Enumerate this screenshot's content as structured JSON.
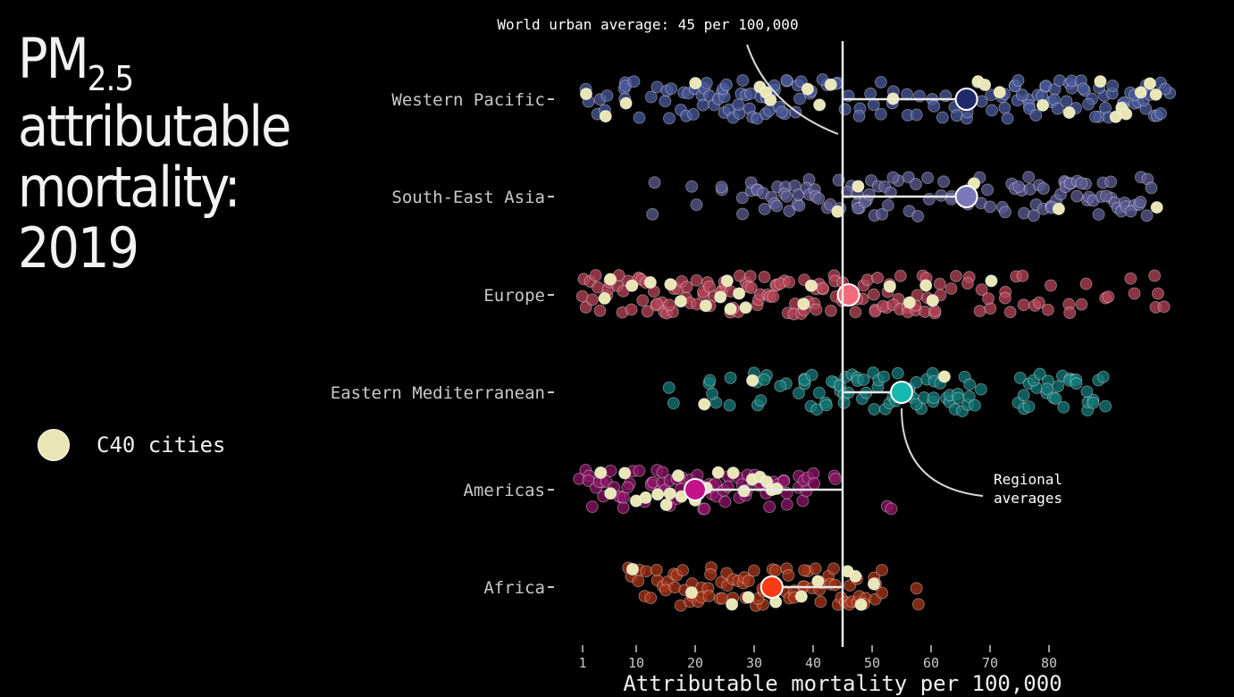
{
  "title": {
    "prefix": "PM",
    "subscript": "2.5",
    "line2": "attributable",
    "line3": "mortality:",
    "line4": "2019"
  },
  "legend": {
    "label": "C40 cities",
    "color": "#e8e6b4"
  },
  "annotations": {
    "world_average": "World urban average: 45 per 100,000",
    "regional_line1": "Regional",
    "regional_line2": "averages"
  },
  "chart_data": {
    "type": "scatter",
    "xlabel": "Attributable mortality per 100,000",
    "xticks": [
      1,
      10,
      20,
      30,
      40,
      50,
      60,
      70,
      80
    ],
    "xlim": [
      0,
      100
    ],
    "world_average": 45,
    "regions": [
      {
        "name": "Western Pacific",
        "average": 66,
        "color": "#1f2a6b",
        "point_color": "#4a5a9c",
        "points": [
          2,
          4,
          5,
          8,
          8,
          10,
          13,
          15,
          16,
          18,
          19,
          20,
          21,
          22,
          23,
          24,
          25,
          25,
          26,
          27,
          28,
          29,
          30,
          31,
          32,
          33,
          34,
          35,
          36,
          37,
          38,
          40,
          42,
          44,
          46,
          48,
          50,
          52,
          54,
          56,
          58,
          60,
          62,
          64,
          66,
          68,
          70,
          72,
          73,
          74,
          75,
          76,
          77,
          78,
          79,
          80,
          81,
          82,
          83,
          84,
          85,
          86,
          87,
          88,
          89,
          90,
          91,
          92,
          93,
          94,
          95,
          96,
          97,
          98,
          99,
          100
        ],
        "c40": [
          2,
          5,
          8,
          20,
          31,
          32,
          33,
          39,
          41,
          43,
          54,
          68,
          69,
          72,
          79,
          83,
          89,
          91,
          92,
          93,
          96,
          97,
          98
        ]
      },
      {
        "name": "South-East Asia",
        "average": 66,
        "color": "#7a78b8",
        "point_color": "#5c5b94",
        "points": [
          13,
          20,
          25,
          28,
          30,
          31,
          32,
          33,
          34,
          35,
          36,
          37,
          38,
          39,
          40,
          41,
          43,
          44,
          46,
          47,
          48,
          49,
          50,
          51,
          52,
          53,
          54,
          56,
          58,
          60,
          62,
          64,
          66,
          68,
          70,
          72,
          74,
          75,
          76,
          77,
          78,
          79,
          80,
          81,
          82,
          83,
          84,
          85,
          86,
          87,
          88,
          89,
          90,
          91,
          92,
          93,
          94,
          95,
          96,
          97
        ],
        "c40": [
          44,
          48,
          67,
          82,
          98
        ]
      },
      {
        "name": "Europe",
        "average": 46,
        "color": "#f26b7a",
        "point_color": "#b84458",
        "points": [
          1,
          2,
          3,
          4,
          5,
          6,
          7,
          8,
          9,
          10,
          11,
          12,
          13,
          14,
          15,
          16,
          17,
          18,
          19,
          20,
          21,
          22,
          23,
          24,
          25,
          26,
          27,
          28,
          29,
          30,
          31,
          32,
          33,
          34,
          35,
          36,
          37,
          38,
          39,
          40,
          41,
          42,
          43,
          44,
          45,
          47,
          48,
          49,
          50,
          51,
          52,
          53,
          54,
          55,
          56,
          57,
          58,
          59,
          60,
          61,
          62,
          64,
          66,
          68,
          70,
          72,
          74,
          76,
          78,
          80,
          83,
          86,
          90,
          94,
          98,
          99
        ],
        "c40": [
          5,
          6,
          9,
          12,
          16,
          18,
          22,
          24,
          25,
          26,
          27,
          29,
          38,
          40,
          53,
          56,
          59,
          60,
          70
        ]
      },
      {
        "name": "Eastern Mediterranean",
        "average": 55,
        "color": "#17b8b0",
        "point_color": "#117a78",
        "points": [
          16,
          22,
          23,
          26,
          30,
          31,
          32,
          35,
          38,
          39,
          40,
          41,
          42,
          43,
          44,
          45,
          46,
          47,
          48,
          49,
          50,
          51,
          52,
          53,
          54,
          56,
          57,
          58,
          59,
          60,
          61,
          62,
          63,
          64,
          65,
          66,
          67,
          68,
          75,
          76,
          77,
          78,
          79,
          80,
          81,
          82,
          83,
          84,
          85,
          86,
          87,
          88,
          89
        ],
        "c40": [
          22,
          30,
          62
        ]
      },
      {
        "name": "Americas",
        "average": 20,
        "color": "#c4138a",
        "point_color": "#8e1468",
        "points": [
          1,
          2,
          3,
          4,
          5,
          6,
          7,
          8,
          9,
          10,
          11,
          12,
          13,
          14,
          15,
          16,
          17,
          18,
          19,
          20,
          21,
          22,
          23,
          24,
          25,
          26,
          27,
          28,
          29,
          30,
          31,
          32,
          33,
          34,
          35,
          36,
          37,
          38,
          39,
          40,
          44,
          53
        ],
        "c40": [
          4,
          6,
          8,
          10,
          12,
          14,
          15,
          16,
          17,
          18,
          19,
          20,
          22,
          24,
          26,
          28,
          30,
          31,
          32,
          33,
          34
        ]
      },
      {
        "name": "Africa",
        "average": 33,
        "color": "#ff3b14",
        "point_color": "#a83418",
        "points": [
          9,
          10,
          12,
          13,
          14,
          15,
          16,
          17,
          18,
          19,
          20,
          21,
          22,
          23,
          24,
          25,
          26,
          27,
          28,
          29,
          30,
          31,
          32,
          33,
          34,
          35,
          36,
          37,
          38,
          39,
          40,
          41,
          42,
          43,
          44,
          45,
          46,
          47,
          48,
          49,
          50,
          51,
          52,
          58
        ],
        "c40": [
          9,
          19,
          26,
          29,
          34,
          38,
          41,
          46,
          47,
          48,
          50
        ]
      }
    ]
  }
}
